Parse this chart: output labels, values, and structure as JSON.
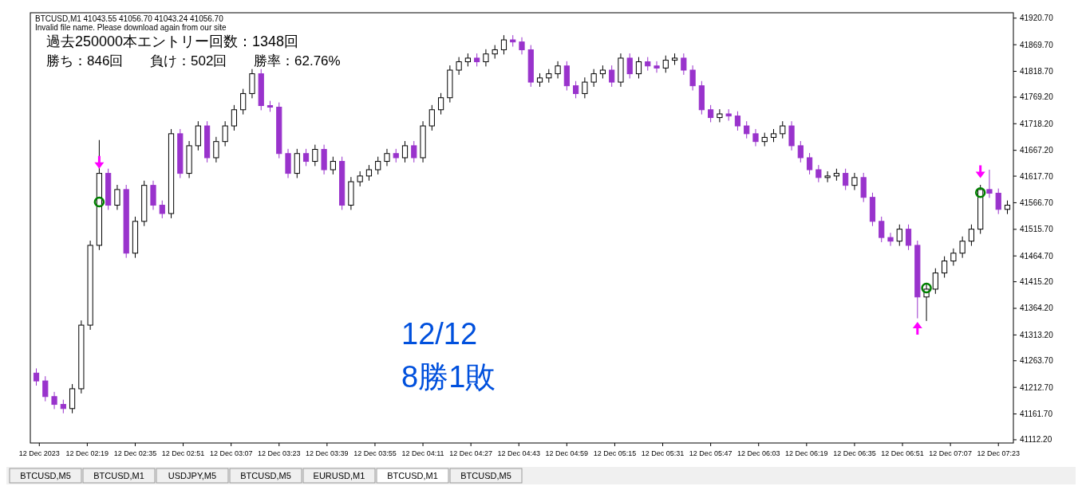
{
  "chart_data": {
    "type": "candlestick",
    "x": [
      "2023-12-12T02:02",
      "2023-12-12T02:05",
      "2023-12-12T02:08",
      "2023-12-12T02:11",
      "2023-12-12T02:14",
      "2023-12-12T02:17",
      "2023-12-12T02:20",
      "2023-12-12T02:23",
      "2023-12-12T02:26",
      "2023-12-12T02:29",
      "2023-12-12T02:32",
      "2023-12-12T02:35",
      "2023-12-12T02:38",
      "2023-12-12T02:41",
      "2023-12-12T02:44",
      "2023-12-12T02:47",
      "2023-12-12T02:50",
      "2023-12-12T02:53",
      "2023-12-12T02:56",
      "2023-12-12T02:59",
      "2023-12-12T03:02",
      "2023-12-12T03:05",
      "2023-12-12T03:08",
      "2023-12-12T03:11",
      "2023-12-12T03:14",
      "2023-12-12T03:17",
      "2023-12-12T03:20",
      "2023-12-12T03:23",
      "2023-12-12T03:26",
      "2023-12-12T03:29",
      "2023-12-12T03:32",
      "2023-12-12T03:35",
      "2023-12-12T03:38",
      "2023-12-12T03:41",
      "2023-12-12T03:44",
      "2023-12-12T03:47",
      "2023-12-12T03:50",
      "2023-12-12T03:53",
      "2023-12-12T03:56",
      "2023-12-12T03:59",
      "2023-12-12T04:02",
      "2023-12-12T04:05",
      "2023-12-12T04:08",
      "2023-12-12T04:11",
      "2023-12-12T04:14",
      "2023-12-12T04:17",
      "2023-12-12T04:20",
      "2023-12-12T04:23",
      "2023-12-12T04:26",
      "2023-12-12T04:29",
      "2023-12-12T04:32",
      "2023-12-12T04:35",
      "2023-12-12T04:38",
      "2023-12-12T04:41",
      "2023-12-12T04:44",
      "2023-12-12T04:47",
      "2023-12-12T04:50",
      "2023-12-12T04:53",
      "2023-12-12T04:56",
      "2023-12-12T04:59",
      "2023-12-12T05:02",
      "2023-12-12T05:05",
      "2023-12-12T05:08",
      "2023-12-12T05:11",
      "2023-12-12T05:14",
      "2023-12-12T05:17",
      "2023-12-12T05:20",
      "2023-12-12T05:23",
      "2023-12-12T05:26",
      "2023-12-12T05:29",
      "2023-12-12T05:32",
      "2023-12-12T05:35",
      "2023-12-12T05:38",
      "2023-12-12T05:41",
      "2023-12-12T05:44",
      "2023-12-12T05:47",
      "2023-12-12T05:50",
      "2023-12-12T05:53",
      "2023-12-12T05:56",
      "2023-12-12T05:59",
      "2023-12-12T06:02",
      "2023-12-12T06:05",
      "2023-12-12T06:08",
      "2023-12-12T06:11",
      "2023-12-12T06:14",
      "2023-12-12T06:17",
      "2023-12-12T06:20",
      "2023-12-12T06:23",
      "2023-12-12T06:26",
      "2023-12-12T06:29",
      "2023-12-12T06:32",
      "2023-12-12T06:35",
      "2023-12-12T06:38",
      "2023-12-12T06:41",
      "2023-12-12T06:44",
      "2023-12-12T06:47",
      "2023-12-12T06:50",
      "2023-12-12T06:53",
      "2023-12-12T06:56",
      "2023-12-12T06:59",
      "2023-12-12T07:02",
      "2023-12-12T07:05",
      "2023-12-12T07:08",
      "2023-12-12T07:11",
      "2023-12-12T07:14",
      "2023-12-12T07:17",
      "2023-12-12T07:20",
      "2023-12-12T07:23",
      "2023-12-12T07:26"
    ],
    "ohlc": [
      [
        41240,
        41249,
        41216,
        41225
      ],
      [
        41225,
        41234,
        41186,
        41195
      ],
      [
        41195,
        41204,
        41171,
        41180
      ],
      [
        41180,
        41189,
        41163,
        41172
      ],
      [
        41172,
        41219,
        41163,
        41210
      ],
      [
        41210,
        41341,
        41201,
        41332
      ],
      [
        41332,
        41494,
        41323,
        41485
      ],
      [
        41485,
        41687,
        41476,
        41623
      ],
      [
        41623,
        41632,
        41553,
        41562
      ],
      [
        41562,
        41601,
        41553,
        41592
      ],
      [
        41592,
        41601,
        41461,
        41470
      ],
      [
        41470,
        41540,
        41461,
        41531
      ],
      [
        41531,
        41609,
        41522,
        41600
      ],
      [
        41600,
        41609,
        41553,
        41562
      ],
      [
        41562,
        41571,
        41537,
        41546
      ],
      [
        41546,
        41708,
        41537,
        41699
      ],
      [
        41699,
        41708,
        41614,
        41623
      ],
      [
        41623,
        41685,
        41614,
        41676
      ],
      [
        41676,
        41723,
        41667,
        41714
      ],
      [
        41714,
        41723,
        41644,
        41653
      ],
      [
        41653,
        41693,
        41644,
        41684
      ],
      [
        41684,
        41723,
        41675,
        41714
      ],
      [
        41714,
        41754,
        41705,
        41745
      ],
      [
        41745,
        41785,
        41736,
        41776
      ],
      [
        41776,
        41823,
        41767,
        41814
      ],
      [
        41814,
        41823,
        41744,
        41753
      ],
      [
        41753,
        41762,
        41741,
        41750
      ],
      [
        41750,
        41759,
        41652,
        41661
      ],
      [
        41661,
        41670,
        41614,
        41623
      ],
      [
        41623,
        41670,
        41614,
        41661
      ],
      [
        41661,
        41670,
        41637,
        41646
      ],
      [
        41646,
        41678,
        41637,
        41669
      ],
      [
        41669,
        41678,
        41621,
        41630
      ],
      [
        41630,
        41655,
        41621,
        41646
      ],
      [
        41646,
        41655,
        41553,
        41562
      ],
      [
        41562,
        41616,
        41553,
        41607
      ],
      [
        41607,
        41627,
        41598,
        41618
      ],
      [
        41618,
        41639,
        41609,
        41630
      ],
      [
        41630,
        41655,
        41621,
        41646
      ],
      [
        41646,
        41670,
        41637,
        41661
      ],
      [
        41661,
        41670,
        41644,
        41653
      ],
      [
        41653,
        41685,
        41644,
        41676
      ],
      [
        41676,
        41685,
        41644,
        41653
      ],
      [
        41653,
        41723,
        41644,
        41714
      ],
      [
        41714,
        41754,
        41705,
        41745
      ],
      [
        41745,
        41777,
        41736,
        41768
      ],
      [
        41768,
        41830,
        41759,
        41821
      ],
      [
        41821,
        41846,
        41812,
        41837
      ],
      [
        41837,
        41853,
        41828,
        41844
      ],
      [
        41844,
        41853,
        41828,
        41837
      ],
      [
        41837,
        41861,
        41828,
        41852
      ],
      [
        41852,
        41869,
        41843,
        41860
      ],
      [
        41860,
        41888,
        41851,
        41879
      ],
      [
        41879,
        41888,
        41866,
        41875
      ],
      [
        41875,
        41884,
        41851,
        41860
      ],
      [
        41860,
        41869,
        41789,
        41798
      ],
      [
        41798,
        41815,
        41789,
        41806
      ],
      [
        41806,
        41823,
        41797,
        41814
      ],
      [
        41814,
        41838,
        41805,
        41829
      ],
      [
        41829,
        41838,
        41782,
        41791
      ],
      [
        41791,
        41800,
        41767,
        41776
      ],
      [
        41776,
        41807,
        41767,
        41798
      ],
      [
        41798,
        41823,
        41789,
        41814
      ],
      [
        41814,
        41830,
        41805,
        41821
      ],
      [
        41821,
        41830,
        41789,
        41798
      ],
      [
        41798,
        41853,
        41789,
        41844
      ],
      [
        41844,
        41853,
        41805,
        41814
      ],
      [
        41814,
        41846,
        41805,
        41837
      ],
      [
        41837,
        41846,
        41820,
        41829
      ],
      [
        41829,
        41838,
        41816,
        41825
      ],
      [
        41825,
        41849,
        41816,
        41840
      ],
      [
        41840,
        41853,
        41831,
        41844
      ],
      [
        41844,
        41853,
        41812,
        41821
      ],
      [
        41821,
        41830,
        41782,
        41791
      ],
      [
        41791,
        41800,
        41736,
        41745
      ],
      [
        41745,
        41754,
        41721,
        41730
      ],
      [
        41730,
        41746,
        41721,
        41737
      ],
      [
        41737,
        41746,
        41724,
        41733
      ],
      [
        41733,
        41742,
        41705,
        41714
      ],
      [
        41714,
        41723,
        41690,
        41699
      ],
      [
        41699,
        41708,
        41675,
        41684
      ],
      [
        41684,
        41701,
        41675,
        41692
      ],
      [
        41692,
        41708,
        41683,
        41699
      ],
      [
        41699,
        41723,
        41690,
        41714
      ],
      [
        41714,
        41723,
        41667,
        41676
      ],
      [
        41676,
        41685,
        41644,
        41653
      ],
      [
        41653,
        41662,
        41621,
        41630
      ],
      [
        41630,
        41639,
        41606,
        41615
      ],
      [
        41615,
        41627,
        41606,
        41618
      ],
      [
        41618,
        41632,
        41609,
        41623
      ],
      [
        41623,
        41632,
        41591,
        41600
      ],
      [
        41600,
        41624,
        41591,
        41615
      ],
      [
        41615,
        41624,
        41568,
        41577
      ],
      [
        41577,
        41586,
        41522,
        41531
      ],
      [
        41531,
        41540,
        41491,
        41500
      ],
      [
        41500,
        41509,
        41484,
        41493
      ],
      [
        41493,
        41525,
        41484,
        41516
      ],
      [
        41516,
        41525,
        41476,
        41485
      ],
      [
        41485,
        41494,
        41345,
        41386
      ],
      [
        41386,
        41410,
        41340,
        41401
      ],
      [
        41401,
        41441,
        41392,
        41432
      ],
      [
        41432,
        41464,
        41423,
        41455
      ],
      [
        41455,
        41479,
        41446,
        41470
      ],
      [
        41470,
        41502,
        41461,
        41493
      ],
      [
        41493,
        41525,
        41484,
        41516
      ],
      [
        41516,
        41601,
        41507,
        41592
      ],
      [
        41592,
        41630,
        41576,
        41585
      ],
      [
        41585,
        41594,
        41545,
        41554
      ],
      [
        41554,
        41571,
        41545,
        41562
      ]
    ],
    "series": [
      {
        "type": "scatter",
        "marker": "triangle",
        "color": "#ff00ff",
        "x": [
          "2023-12-12T02:23",
          "2023-12-12T06:56",
          "2023-12-12T07:17"
        ],
        "values": [
          41641,
          41329,
          41623
        ]
      },
      {
        "type": "scatter",
        "marker": "circle",
        "color": "#008000",
        "x": [
          "2023-12-12T02:23",
          "2023-12-12T06:59",
          "2023-12-12T07:17"
        ],
        "values": [
          41568,
          41403,
          41586
        ]
      }
    ],
    "xlim": [
      "2023-12-12T02:00",
      "2023-12-12T07:28"
    ],
    "xticks": [
      {
        "value": "2023-12-12T02:03",
        "label": "12 Dec 2023"
      },
      {
        "value": "2023-12-12T02:19",
        "label": "12 Dec 02:19"
      },
      {
        "value": "2023-12-12T02:35",
        "label": "12 Dec 02:35"
      },
      {
        "value": "2023-12-12T02:51",
        "label": "12 Dec 02:51"
      },
      {
        "value": "2023-12-12T03:07",
        "label": "12 Dec 03:07"
      },
      {
        "value": "2023-12-12T03:23",
        "label": "12 Dec 03:23"
      },
      {
        "value": "2023-12-12T03:39",
        "label": "12 Dec 03:39"
      },
      {
        "value": "2023-12-12T03:55",
        "label": "12 Dec 03:55"
      },
      {
        "value": "2023-12-12T04:11",
        "label": "12 Dec 04:11"
      },
      {
        "value": "2023-12-12T04:27",
        "label": "12 Dec 04:27"
      },
      {
        "value": "2023-12-12T04:43",
        "label": "12 Dec 04:43"
      },
      {
        "value": "2023-12-12T04:59",
        "label": "12 Dec 04:59"
      },
      {
        "value": "2023-12-12T05:15",
        "label": "12 Dec 05:15"
      },
      {
        "value": "2023-12-12T05:31",
        "label": "12 Dec 05:31"
      },
      {
        "value": "2023-12-12T05:47",
        "label": "12 Dec 05:47"
      },
      {
        "value": "2023-12-12T06:03",
        "label": "12 Dec 06:03"
      },
      {
        "value": "2023-12-12T06:19",
        "label": "12 Dec 06:19"
      },
      {
        "value": "2023-12-12T06:35",
        "label": "12 Dec 06:35"
      },
      {
        "value": "2023-12-12T06:51",
        "label": "12 Dec 06:51"
      },
      {
        "value": "2023-12-12T07:07",
        "label": "12 Dec 07:07"
      },
      {
        "value": "2023-12-12T07:23",
        "label": "12 Dec 07:23"
      }
    ],
    "ylim": [
      41106,
      41931
    ],
    "yticks": [
      {
        "value": 41920.7,
        "label": "41920.70"
      },
      {
        "value": 41869.7,
        "label": "41869.70"
      },
      {
        "value": 41818.7,
        "label": "41818.70"
      },
      {
        "value": 41769.2,
        "label": "41769.20"
      },
      {
        "value": 41718.2,
        "label": "41718.20"
      },
      {
        "value": 41667.2,
        "label": "41667.20"
      },
      {
        "value": 41617.7,
        "label": "41617.70"
      },
      {
        "value": 41566.7,
        "label": "41566.70"
      },
      {
        "value": 41515.7,
        "label": "41515.70"
      },
      {
        "value": 41464.7,
        "label": "41464.70"
      },
      {
        "value": 41415.2,
        "label": "41415.20"
      },
      {
        "value": 41364.2,
        "label": "41364.20"
      },
      {
        "value": 41313.2,
        "label": "41313.20"
      },
      {
        "value": 41263.7,
        "label": "41263.70"
      },
      {
        "value": 41212.7,
        "label": "41212.70"
      },
      {
        "value": 41161.7,
        "label": "41161.70"
      },
      {
        "value": 41112.2,
        "label": "41112.20"
      }
    ],
    "annotations": [
      "BTCUSD,M1  41043.55 41056.70 41043.24 41056.70",
      "Invalid file name. Please download again from our site",
      "過去250000本エントリー回数：1348回",
      "勝ち：846回",
      "負け：502回",
      "勝率：62.76%",
      "12/12",
      "8勝1敗",
      "BTCUSD,M5",
      "BTCUSD,M1",
      "USDJPY,M5",
      "BTCUSD,M5",
      "EURUSD,M1",
      "BTCUSD,M1",
      "BTCUSD,M5"
    ]
  }
}
